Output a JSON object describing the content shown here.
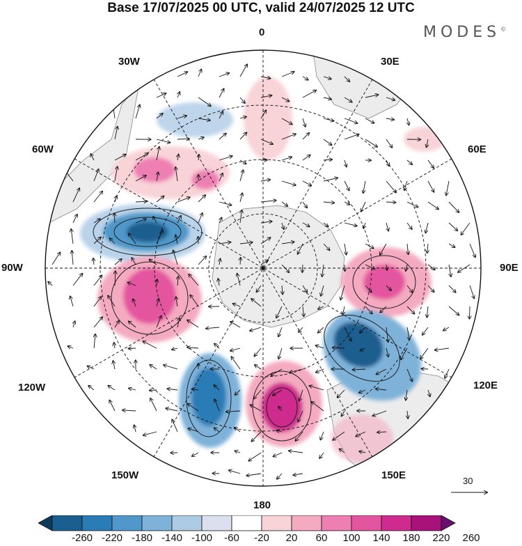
{
  "title": "Base 17/07/2025 00 UTC, valid 24/07/2025 12 UTC",
  "brand": "MODES",
  "brand_mark": "©",
  "meridian_labels": {
    "m0": "0",
    "m30e": "30E",
    "m60e": "60E",
    "m90e": "90E",
    "m120e": "120E",
    "m150e": "150E",
    "m180": "180",
    "m150w": "150W",
    "m120w": "120W",
    "m90w": "90W",
    "m60w": "60W",
    "m30w": "30W"
  },
  "vector_scale_label": "30",
  "colorbar": {
    "colors": [
      "#0d3b5e",
      "#1a5f8f",
      "#2b7bb6",
      "#4f98c9",
      "#7fb2d9",
      "#aecbe6",
      "#dcdfee",
      "#ffffff",
      "#f8d3d8",
      "#f4aac1",
      "#ee7fb2",
      "#e4559f",
      "#cf2a8e",
      "#a8127a",
      "#6a0f6e"
    ],
    "labels": [
      "-260",
      "-220",
      "-180",
      "-140",
      "-100",
      "-60",
      "-20",
      "20",
      "60",
      "100",
      "140",
      "180",
      "220",
      "260"
    ]
  },
  "colors": {
    "land": "#ececec",
    "negative_strong": "#1a5f8f",
    "positive_strong": "#cf2a8e"
  }
}
